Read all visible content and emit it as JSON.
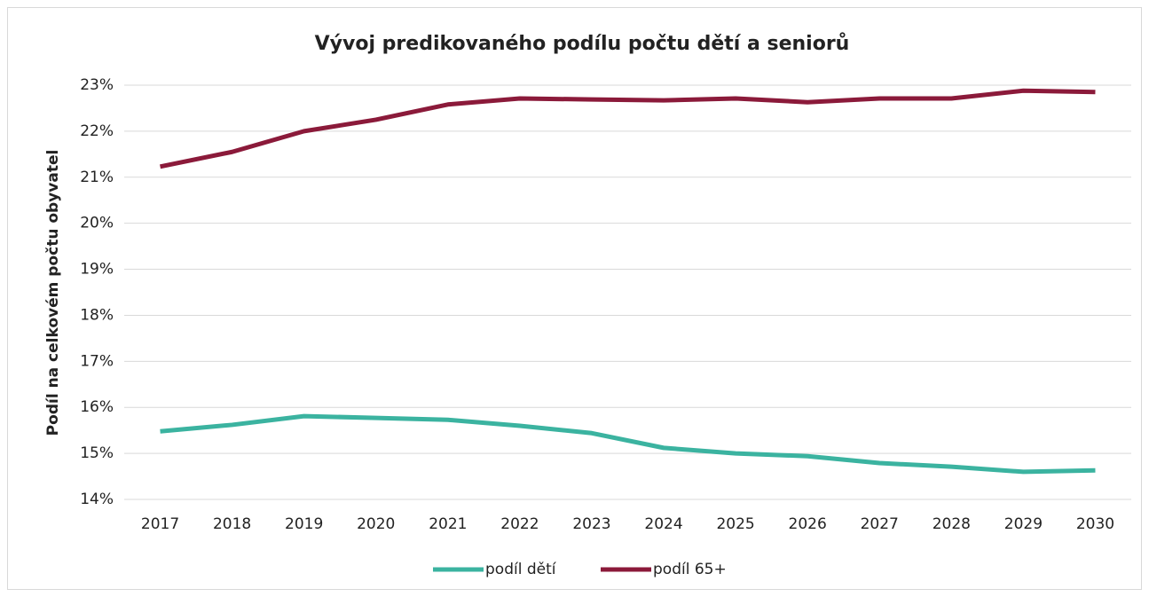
{
  "chart_data": {
    "type": "line",
    "title": "Vývoj predikovaného podílu počtu dětí a seniorů",
    "y_label": "Podíl na celkovém počtu obyvatel",
    "categories": [
      "2017",
      "2018",
      "2019",
      "2020",
      "2021",
      "2022",
      "2023",
      "2024",
      "2025",
      "2026",
      "2027",
      "2028",
      "2029",
      "2030"
    ],
    "series": [
      {
        "name": "podíl dětí",
        "color": "#3bb3a0",
        "values": [
          15.48,
          15.62,
          15.81,
          15.77,
          15.73,
          15.6,
          15.44,
          15.12,
          15.0,
          14.94,
          14.79,
          14.71,
          14.6,
          14.63
        ]
      },
      {
        "name": "podíl 65+",
        "color": "#8b1a3a",
        "values": [
          21.23,
          21.55,
          22.0,
          22.25,
          22.58,
          22.71,
          22.69,
          22.67,
          22.71,
          22.63,
          22.71,
          22.71,
          22.88,
          22.85
        ]
      }
    ],
    "ylim": [
      14,
      23
    ],
    "yticks": [
      {
        "value": 14,
        "label": "14%"
      },
      {
        "value": 15,
        "label": "15%"
      },
      {
        "value": 16,
        "label": "16%"
      },
      {
        "value": 17,
        "label": "17%"
      },
      {
        "value": 18,
        "label": "18%"
      },
      {
        "value": 19,
        "label": "19%"
      },
      {
        "value": 20,
        "label": "20%"
      },
      {
        "value": 21,
        "label": "21%"
      },
      {
        "value": 22,
        "label": "22%"
      },
      {
        "value": 23,
        "label": "23%"
      }
    ],
    "grid": true,
    "legend": "bottom"
  }
}
